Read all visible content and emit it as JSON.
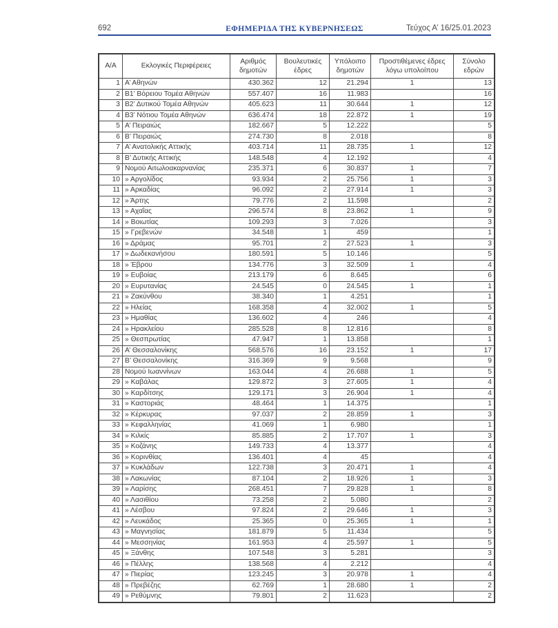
{
  "header": {
    "page_number": "692",
    "title": "ΕΦΗΜΕΡΙΔΑ ΤΗΣ ΚΥΒΕΡΝΗΣΕΩΣ",
    "issue": "Τεύχος Α’ 16/25.01.2023"
  },
  "colors": {
    "accent_blue": "#2a4d9d",
    "text": "#3d3d3d",
    "border": "#4d4d4d"
  },
  "table": {
    "headers": [
      "Α/Α",
      "Εκλογικές Περιφέρειες",
      "Αριθμός δημοτών",
      "Βουλευτικές έδρες",
      "Υπόλοιπο δημοτών",
      "Προστιθέμενες έδρες λόγω υπολοίπου",
      "Σύνολο εδρών"
    ],
    "column_keys": [
      "aa",
      "district",
      "municipal-voters",
      "parliamentary-seats",
      "remainder-voters",
      "added-seats",
      "total-seats"
    ],
    "rows": [
      [
        "1",
        "Α’ Αθηνών",
        "430.362",
        "12",
        "21.294",
        "1",
        "13"
      ],
      [
        "2",
        "Β1’ Βόρειου Τομέα Αθηνών",
        "557.407",
        "16",
        "11.983",
        "",
        "16"
      ],
      [
        "3",
        "Β2’ Δυτικού Τομέα Αθηνών",
        "405.623",
        "11",
        "30.644",
        "1",
        "12"
      ],
      [
        "4",
        "Β3’ Νότιου Τομέα Αθηνών",
        "636.474",
        "18",
        "22.872",
        "1",
        "19"
      ],
      [
        "5",
        "Α’ Πειραιώς",
        "182.667",
        "5",
        "12.222",
        "",
        "5"
      ],
      [
        "6",
        "Β’ Πειραιώς",
        "274.730",
        "8",
        "2.018",
        "",
        "8"
      ],
      [
        "7",
        "Α’ Ανατολικής Αττικής",
        "403.714",
        "11",
        "28.735",
        "1",
        "12"
      ],
      [
        "8",
        "Β’ Δυτικής Αττικής",
        "148.548",
        "4",
        "12.192",
        "",
        "4"
      ],
      [
        "9",
        "Νομού Αιτωλοακαρνανίας",
        "235.371",
        "6",
        "30.837",
        "1",
        "7"
      ],
      [
        "10",
        "» Αργολίδος",
        "93.934",
        "2",
        "25.756",
        "1",
        "3"
      ],
      [
        "11",
        "» Αρκαδίας",
        "96.092",
        "2",
        "27.914",
        "1",
        "3"
      ],
      [
        "12",
        "» Άρτης",
        "79.776",
        "2",
        "11.598",
        "",
        "2"
      ],
      [
        "13",
        "» Αχαΐας",
        "296.574",
        "8",
        "23.862",
        "1",
        "9"
      ],
      [
        "14",
        "» Βοιωτίας",
        "109.293",
        "3",
        "7.026",
        "",
        "3"
      ],
      [
        "15",
        "» Γρεβενών",
        "34.548",
        "1",
        "459",
        "",
        "1"
      ],
      [
        "16",
        "» Δράμας",
        "95.701",
        "2",
        "27.523",
        "1",
        "3"
      ],
      [
        "17",
        "» Δωδεκανήσου",
        "180.591",
        "5",
        "10.146",
        "",
        "5"
      ],
      [
        "18",
        "» Έβρου",
        "134.776",
        "3",
        "32.509",
        "1",
        "4"
      ],
      [
        "19",
        "» Ευβοίας",
        "213.179",
        "6",
        "8.645",
        "",
        "6"
      ],
      [
        "20",
        "» Ευρυτανίας",
        "24.545",
        "0",
        "24.545",
        "1",
        "1"
      ],
      [
        "21",
        "» Ζακύνθου",
        "38.340",
        "1",
        "4.251",
        "",
        "1"
      ],
      [
        "22",
        "» Ηλείας",
        "168.358",
        "4",
        "32.002",
        "1",
        "5"
      ],
      [
        "23",
        "» Ημαθίας",
        "136.602",
        "4",
        "246",
        "",
        "4"
      ],
      [
        "24",
        "» Ηρακλείου",
        "285.528",
        "8",
        "12.816",
        "",
        "8"
      ],
      [
        "25",
        "» Θεσπρωτίας",
        "47.947",
        "1",
        "13.858",
        "",
        "1"
      ],
      [
        "26",
        "Α’ Θεσσαλονίκης",
        "568.576",
        "16",
        "23.152",
        "1",
        "17"
      ],
      [
        "27",
        "Β’ Θεσσαλονίκης",
        "316.369",
        "9",
        "9.568",
        "",
        "9"
      ],
      [
        "28",
        "Νομού Ιωαννίνων",
        "163.044",
        "4",
        "26.688",
        "1",
        "5"
      ],
      [
        "29",
        "» Καβάλας",
        "129.872",
        "3",
        "27.605",
        "1",
        "4"
      ],
      [
        "30",
        "» Καρδίτσης",
        "129.171",
        "3",
        "26.904",
        "1",
        "4"
      ],
      [
        "31",
        "» Καστοριάς",
        "48.464",
        "1",
        "14.375",
        "",
        "1"
      ],
      [
        "32",
        "» Κέρκυρας",
        "97.037",
        "2",
        "28.859",
        "1",
        "3"
      ],
      [
        "33",
        "» Κεφαλληνίας",
        "41.069",
        "1",
        "6.980",
        "",
        "1"
      ],
      [
        "34",
        "» Κιλκίς",
        "85.885",
        "2",
        "17.707",
        "1",
        "3"
      ],
      [
        "35",
        "» Κοζάνης",
        "149.733",
        "4",
        "13.377",
        "",
        "4"
      ],
      [
        "36",
        "» Κορινθίας",
        "136.401",
        "4",
        "45",
        "",
        "4"
      ],
      [
        "37",
        "» Κυκλάδων",
        "122.738",
        "3",
        "20.471",
        "1",
        "4"
      ],
      [
        "38",
        "» Λακωνίας",
        "87.104",
        "2",
        "18.926",
        "1",
        "3"
      ],
      [
        "39",
        "» Λαρίσης",
        "268.451",
        "7",
        "29.828",
        "1",
        "8"
      ],
      [
        "40",
        "» Λασιθίου",
        "73.258",
        "2",
        "5.080",
        "",
        "2"
      ],
      [
        "41",
        "» Λέσβου",
        "97.824",
        "2",
        "29.646",
        "1",
        "3"
      ],
      [
        "42",
        "» Λευκάδος",
        "25.365",
        "0",
        "25.365",
        "1",
        "1"
      ],
      [
        "43",
        "» Μαγνησίας",
        "181.879",
        "5",
        "11.434",
        "",
        "5"
      ],
      [
        "44",
        "» Μεσσηνίας",
        "161.953",
        "4",
        "25.597",
        "1",
        "5"
      ],
      [
        "45",
        "» Ξάνθης",
        "107.548",
        "3",
        "5.281",
        "",
        "3"
      ],
      [
        "46",
        "» Πέλλης",
        "138.568",
        "4",
        "2.212",
        "",
        "4"
      ],
      [
        "47",
        "» Πιερίας",
        "123.245",
        "3",
        "20.978",
        "1",
        "4"
      ],
      [
        "48",
        "» Πρεβέζης",
        "62.769",
        "1",
        "28.680",
        "1",
        "2"
      ],
      [
        "49",
        "» Ρεθύμνης",
        "79.801",
        "2",
        "11.623",
        "",
        "2"
      ]
    ]
  }
}
